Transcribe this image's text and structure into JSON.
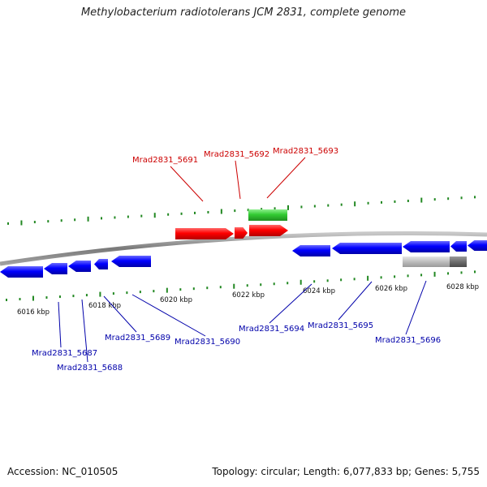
{
  "header": {
    "title": "Methylobacterium radiotolerans JCM 2831, complete genome"
  },
  "footer": {
    "accession": "Accession: NC_010505",
    "summary": "Topology: circular; Length: 6,077,833 bp; Genes: 5,755"
  },
  "colors": {
    "forward_gene": "#ff0000",
    "reverse_gene": "#0000ff",
    "rna_gene": "#33cc33",
    "other_feature": "#bbbbbb",
    "backbone": "#888888",
    "gc_tick": "#228822",
    "label_forward": "#cc0000",
    "label_reverse": "#0000aa"
  },
  "scale": {
    "unit": "kbp",
    "ticks": [
      {
        "label": "6016 kbp"
      },
      {
        "label": "6018 kbp"
      },
      {
        "label": "6020 kbp"
      },
      {
        "label": "6022 kbp"
      },
      {
        "label": "6024 kbp"
      },
      {
        "label": "6026 kbp"
      },
      {
        "label": "6028 kbp"
      }
    ]
  },
  "genes_forward": [
    {
      "name": "Mrad2831_5691"
    },
    {
      "name": "Mrad2831_5692"
    },
    {
      "name": "Mrad2831_5693"
    }
  ],
  "genes_reverse": [
    {
      "name": "Mrad2831_5687"
    },
    {
      "name": "Mrad2831_5688"
    },
    {
      "name": "Mrad2831_5689"
    },
    {
      "name": "Mrad2831_5690"
    },
    {
      "name": "Mrad2831_5694"
    },
    {
      "name": "Mrad2831_5695"
    },
    {
      "name": "Mrad2831_5696"
    }
  ]
}
